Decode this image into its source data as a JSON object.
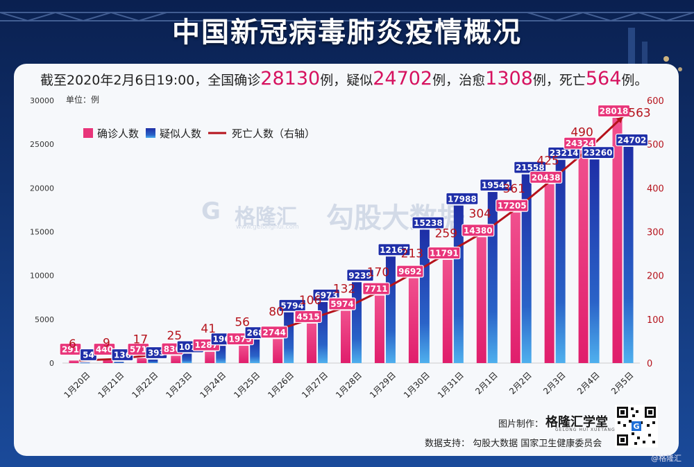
{
  "title": "中国新冠病毒肺炎疫情概况",
  "headline": {
    "prefix": "截至2020年2月6日19:00，全国确诊",
    "confirmed": "28130",
    "mid1": "例，疑似",
    "suspected": "24702",
    "mid2": "例，治愈",
    "cured": "1308",
    "mid3": "例，死亡",
    "deaths": "564",
    "suffix": "例。"
  },
  "chart_data": {
    "type": "bar",
    "unit_label": "单位：例",
    "categories": [
      "1月20日",
      "1月21日",
      "1月22日",
      "1月23日",
      "1月24日",
      "1月25日",
      "1月26日",
      "1月27日",
      "1月28日",
      "1月29日",
      "1月30日",
      "1月31日",
      "2月1日",
      "2月2日",
      "2月3日",
      "2月4日",
      "2月5日"
    ],
    "series": [
      {
        "name": "确诊人数",
        "type": "bar",
        "axis": "left",
        "color": "#e8357a",
        "values": [
          291,
          440,
          571,
          830,
          1287,
          1975,
          2744,
          4515,
          5974,
          7711,
          9692,
          11791,
          14380,
          17205,
          20438,
          24324,
          28018
        ],
        "labels": [
          "291",
          "440",
          "571",
          "830",
          "1287",
          "1975",
          "2744",
          "4515",
          "5974",
          "7711",
          "9692",
          "11791",
          "14380",
          "17205",
          "20438",
          "24324",
          "28018"
        ]
      },
      {
        "name": "疑似人数",
        "type": "bar",
        "axis": "left",
        "color": "#1f2fa8",
        "values": [
          54,
          136,
          393,
          1072,
          1965,
          2684,
          5794,
          6973,
          9239,
          12167,
          15238,
          17988,
          19544,
          21558,
          23214,
          23260,
          24702
        ],
        "labels": [
          "54",
          "136",
          "393",
          "1072",
          "1965",
          "2684",
          "5794",
          "6973",
          "9239",
          "12167",
          "15238",
          "17988",
          "19544",
          "21558",
          "23214",
          "23260",
          "24702"
        ]
      },
      {
        "name": "死亡人数（右轴）",
        "type": "line",
        "axis": "right",
        "color": "#b5121b",
        "values": [
          6,
          9,
          17,
          25,
          41,
          56,
          80,
          106,
          132,
          170,
          213,
          259,
          304,
          361,
          425,
          490,
          563
        ],
        "labels": [
          "6",
          "9",
          "17",
          "25",
          "41",
          "56",
          "80",
          "106",
          "132",
          "170",
          "213",
          "259",
          "304",
          "361",
          "425",
          "490",
          "563"
        ]
      }
    ],
    "y_left": {
      "min": 0,
      "max": 30000,
      "ticks": [
        0,
        5000,
        10000,
        15000,
        20000,
        25000,
        30000
      ]
    },
    "y_right": {
      "min": 0,
      "max": 600,
      "ticks": [
        0,
        100,
        200,
        300,
        400,
        500,
        600
      ]
    },
    "legend_position": "top-left",
    "grid": false
  },
  "footer": {
    "made_by_label": "图片制作：",
    "brand": "格隆汇学堂",
    "brand_sub": "GELONG HUI XUETANG",
    "data_support": "数据支持：  勾股大数据  国家卫生健康委员会",
    "corner": "@格隆汇"
  },
  "watermarks": {
    "logo_text": "格隆汇",
    "site": "www.gelonghui.com",
    "right_text": "勾股大数据"
  },
  "colors": {
    "confirmed": "#e8357a",
    "suspected": "#1f2fa8",
    "deaths": "#b5121b",
    "headline_number": "#d6125f"
  }
}
